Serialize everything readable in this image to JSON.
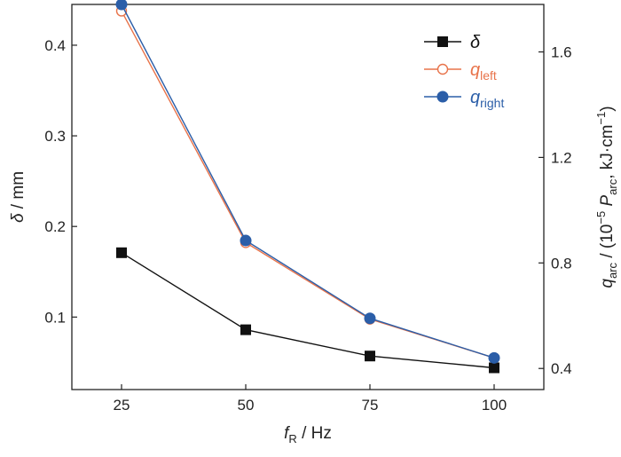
{
  "chart_data": {
    "type": "line",
    "x": [
      25,
      50,
      75,
      100
    ],
    "x_tick_labels": [
      "25",
      "50",
      "75",
      "100"
    ],
    "xlim": [
      15,
      110
    ],
    "xlabel": {
      "var": "f",
      "sub": "R",
      "rest": " / Hz"
    },
    "ylabel_left": {
      "var": "δ",
      "rest": " / mm"
    },
    "ylim_left": [
      0.02,
      0.445
    ],
    "yticks_left": [
      0.1,
      0.2,
      0.3,
      0.4
    ],
    "y_tick_labels_left": [
      "0.1",
      "0.2",
      "0.3",
      "0.4"
    ],
    "ylabel_right": {
      "var": "q",
      "sub": "arc",
      "pre": " / (10",
      "sup": "−5",
      "mid_var": "P",
      "mid_sub": "arc",
      "post": ", kJ·cm",
      "post_sup": "−1",
      "close": ")"
    },
    "ylim_right": [
      0.32,
      1.78
    ],
    "yticks_right": [
      0.4,
      0.8,
      1.2,
      1.6
    ],
    "y_tick_labels_right": [
      "0.4",
      "0.8",
      "1.2",
      "1.6"
    ],
    "grid": false,
    "legend_position": "top-right",
    "series": [
      {
        "name": "δ",
        "sub": "",
        "axis": "left",
        "marker": "square-filled",
        "color": "#111111",
        "values": [
          0.171,
          0.086,
          0.057,
          0.044
        ]
      },
      {
        "name": "q",
        "sub": "left",
        "axis": "right",
        "marker": "circle-open",
        "color": "#e8734a",
        "values": [
          1.755,
          0.877,
          0.587,
          0.44
        ]
      },
      {
        "name": "q",
        "sub": "right",
        "axis": "right",
        "marker": "circle-filled",
        "color": "#2b5ea8",
        "values": [
          1.78,
          0.885,
          0.59,
          0.44
        ]
      }
    ]
  }
}
